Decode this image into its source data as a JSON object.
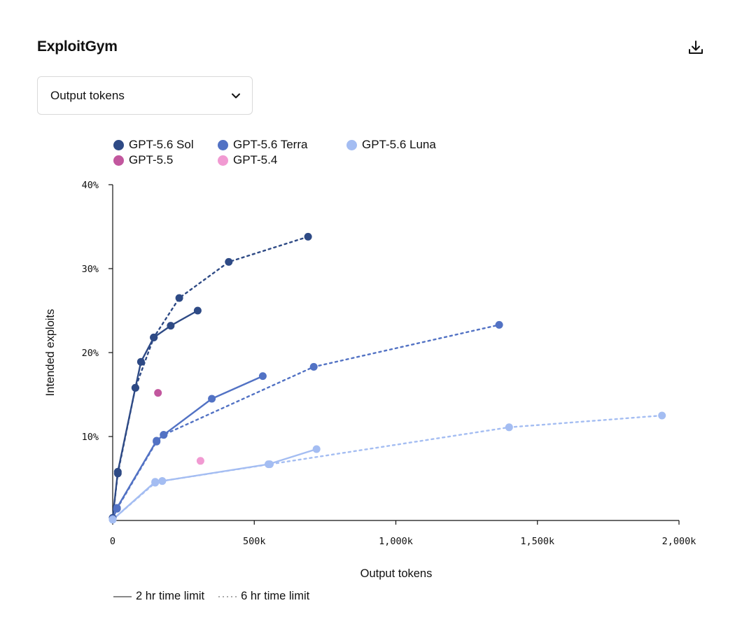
{
  "header": {
    "title": "ExploitGym",
    "download_icon": "download-icon"
  },
  "metric_select": {
    "selected": "Output tokens",
    "icon": "chevron-down-icon"
  },
  "line_styles": {
    "solid_label": "2 hr time limit",
    "dashed_label": "6 hr time limit"
  },
  "chart_data": {
    "type": "line",
    "xlabel": "Output tokens",
    "ylabel": "Intended exploits",
    "xlim": [
      0,
      2000000
    ],
    "ylim": [
      0,
      40
    ],
    "x_ticks": [
      0,
      500000,
      1000000,
      1500000,
      2000000
    ],
    "x_tick_labels": [
      "0",
      "500k",
      "1,000k",
      "1,500k",
      "2,000k"
    ],
    "y_ticks": [
      10,
      20,
      30,
      40
    ],
    "y_tick_labels": [
      "10%",
      "20%",
      "30%",
      "40%"
    ],
    "legend_position": "top-left",
    "grid": false,
    "legend": [
      {
        "name": "GPT-5.6 Sol",
        "color": "#2e4a85"
      },
      {
        "name": "GPT-5.6 Terra",
        "color": "#5272c4"
      },
      {
        "name": "GPT-5.6 Luna",
        "color": "#a4bdf2"
      },
      {
        "name": "GPT-5.5",
        "color": "#c2579e"
      },
      {
        "name": "GPT-5.4",
        "color": "#f19ad2"
      }
    ],
    "series": [
      {
        "name": "GPT-5.6 Sol",
        "time_limit": "2 hr time limit",
        "style": "solid",
        "color": "#2e4a85",
        "x": [
          0,
          18000,
          80000,
          100000,
          145000,
          205000,
          300000
        ],
        "y": [
          0.3,
          5.8,
          15.8,
          18.9,
          21.8,
          23.2,
          25.0
        ]
      },
      {
        "name": "GPT-5.6 Sol",
        "time_limit": "6 hr time limit",
        "style": "dashed",
        "color": "#2e4a85",
        "x": [
          0,
          18000,
          80000,
          145000,
          235000,
          410000,
          690000
        ],
        "y": [
          0.3,
          5.6,
          15.8,
          21.8,
          26.5,
          30.8,
          33.8
        ]
      },
      {
        "name": "GPT-5.6 Terra",
        "time_limit": "2 hr time limit",
        "style": "solid",
        "color": "#5272c4",
        "x": [
          0,
          15000,
          155000,
          180000,
          350000,
          530000
        ],
        "y": [
          0.2,
          1.5,
          9.5,
          10.2,
          14.5,
          17.2
        ]
      },
      {
        "name": "GPT-5.6 Terra",
        "time_limit": "6 hr time limit",
        "style": "dashed",
        "color": "#5272c4",
        "x": [
          0,
          15000,
          155000,
          180000,
          710000,
          1365000
        ],
        "y": [
          0.2,
          1.4,
          9.4,
          10.2,
          18.3,
          23.3
        ]
      },
      {
        "name": "GPT-5.6 Luna",
        "time_limit": "2 hr time limit",
        "style": "solid",
        "color": "#a4bdf2",
        "x": [
          0,
          150000,
          175000,
          550000,
          720000
        ],
        "y": [
          0.1,
          4.6,
          4.7,
          6.7,
          8.5
        ]
      },
      {
        "name": "GPT-5.6 Luna",
        "time_limit": "6 hr time limit",
        "style": "dashed",
        "color": "#a4bdf2",
        "x": [
          0,
          150000,
          175000,
          555000,
          1400000,
          1940000
        ],
        "y": [
          0.1,
          4.5,
          4.7,
          6.7,
          11.1,
          12.5
        ]
      },
      {
        "name": "GPT-5.5",
        "style": "point",
        "color": "#c2579e",
        "x": [
          160000
        ],
        "y": [
          15.2
        ]
      },
      {
        "name": "GPT-5.4",
        "style": "point",
        "color": "#f19ad2",
        "x": [
          310000
        ],
        "y": [
          7.1
        ]
      }
    ]
  }
}
